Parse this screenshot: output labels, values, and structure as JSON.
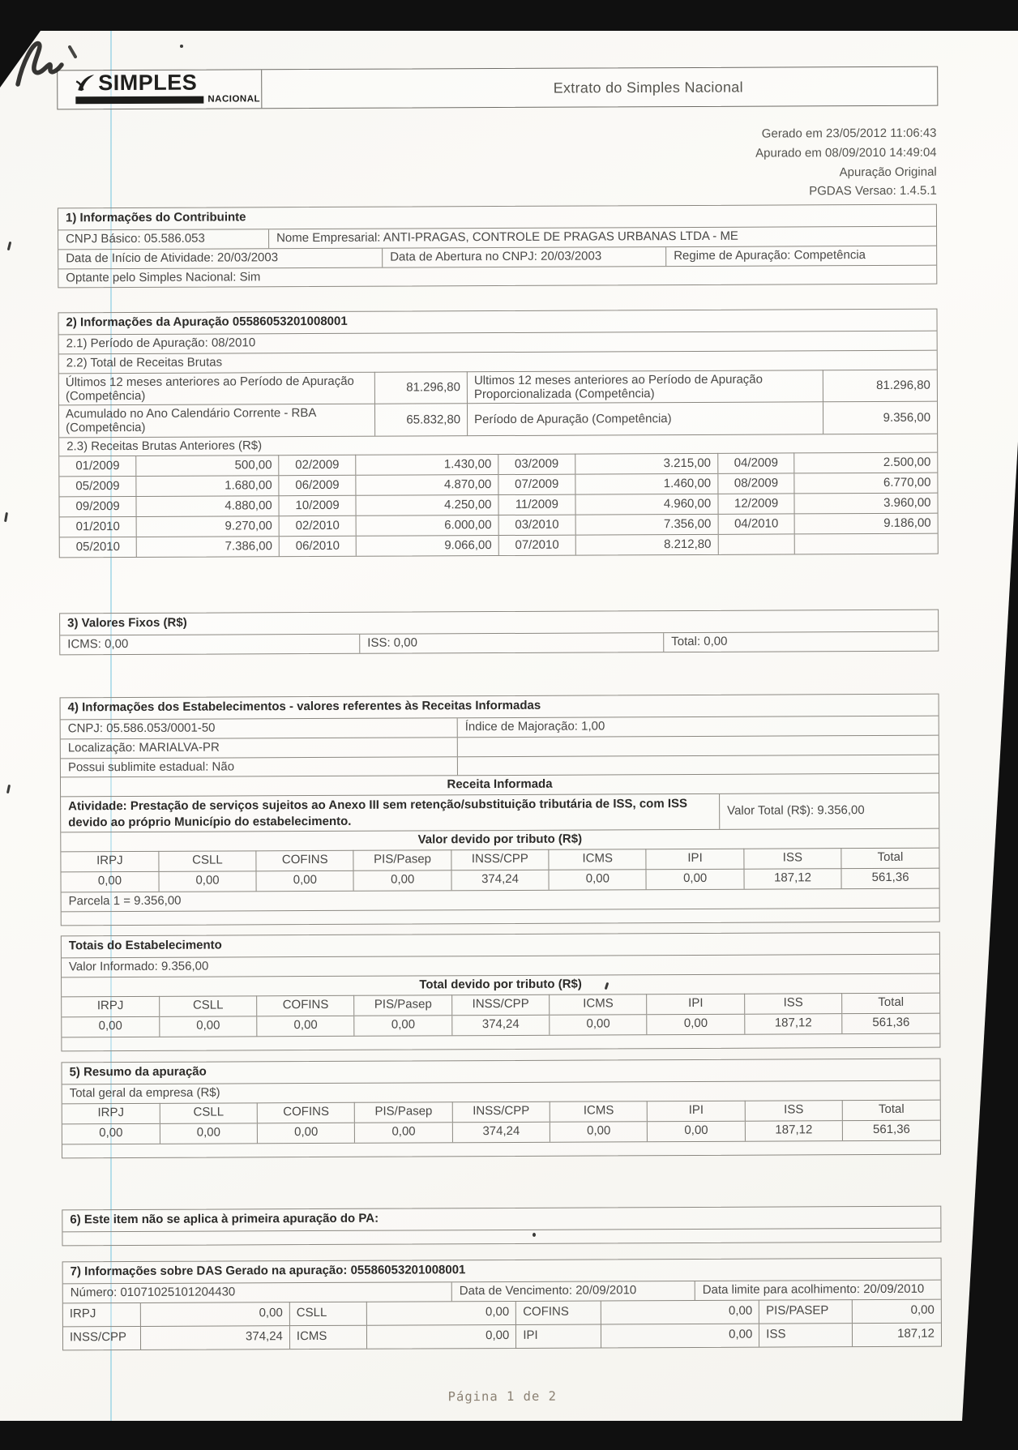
{
  "colors": {
    "paper": "#fbfaf7",
    "ink": "#4a4947"
  },
  "header": {
    "logo_top": "SIMPLES",
    "logo_bottom": "NACIONAL",
    "title": "Extrato do Simples Nacional"
  },
  "meta": {
    "generated": "Gerado em 23/05/2012 11:06:43",
    "calculated": "Apurado em 08/09/2010 14:49:04",
    "apuracao_type": "Apuração Original",
    "version": "PGDAS Versao: 1.4.5.1"
  },
  "sec1": {
    "title": "1) Informações do Contribuinte",
    "cnpj": "CNPJ Básico: 05.586.053",
    "nome": "Nome Empresarial: ANTI-PRAGAS, CONTROLE DE PRAGAS URBANAS LTDA - ME",
    "inicio": "Data de Início de Atividade: 20/03/2003",
    "abertura": "Data de Abertura no CNPJ: 20/03/2003",
    "regime": "Regime de Apuração: Competência",
    "optante": "Optante pelo Simples Nacional: Sim"
  },
  "sec2": {
    "title": "2) Informações da Apuração 05586053201008001",
    "periodo": "2.1) Período de Apuração: 08/2010",
    "total_receitas": "2.2) Total de Receitas Brutas",
    "receitas_totais": [
      [
        "Últimos 12 meses anteriores ao Período de Apuração (Competência)",
        "81.296,80",
        "Ultimos 12 meses anteriores ao Período de Apuração Proporcionalizada (Competência)",
        "81.296,80"
      ],
      [
        "Acumulado no Ano Calendário Corrente - RBA (Competência)",
        "65.832,80",
        "Período de Apuração (Competência)",
        "9.356,00"
      ]
    ],
    "anteriores_title": "2.3) Receitas Brutas Anteriores (R$)",
    "anteriores": [
      [
        "01/2009",
        "500,00",
        "02/2009",
        "1.430,00",
        "03/2009",
        "3.215,00",
        "04/2009",
        "2.500,00"
      ],
      [
        "05/2009",
        "1.680,00",
        "06/2009",
        "4.870,00",
        "07/2009",
        "1.460,00",
        "08/2009",
        "6.770,00"
      ],
      [
        "09/2009",
        "4.880,00",
        "10/2009",
        "4.250,00",
        "11/2009",
        "4.960,00",
        "12/2009",
        "3.960,00"
      ],
      [
        "01/2010",
        "9.270,00",
        "02/2010",
        "6.000,00",
        "03/2010",
        "7.356,00",
        "04/2010",
        "9.186,00"
      ],
      [
        "05/2010",
        "7.386,00",
        "06/2010",
        "9.066,00",
        "07/2010",
        "8.212,80",
        "",
        ""
      ]
    ]
  },
  "sec3": {
    "title": "3) Valores Fixos (R$)",
    "icms": "ICMS: 0,00",
    "iss": "ISS: 0,00",
    "total": "Total: 0,00"
  },
  "sec4": {
    "title": "4) Informações dos Estabelecimentos - valores referentes às Receitas Informadas",
    "cnpj": "CNPJ: 05.586.053/0001-50",
    "indice": "Índice de Majoração: 1,00",
    "localizacao": "Localização: MARIALVA-PR",
    "sublimite": "Possui sublimite estadual: Não",
    "receita_header": "Receita Informada",
    "atividade": "Atividade: Prestação de serviços sujeitos ao Anexo III sem retenção/substituição tributária de ISS, com ISS devido ao próprio Município do estabelecimento.",
    "valor_total": "Valor Total (R$): 9.356,00",
    "tributo_header": "Valor devido por tributo (R$)",
    "tributos": [
      [
        "IRPJ",
        "CSLL",
        "COFINS",
        "PIS/Pasep",
        "INSS/CPP",
        "ICMS",
        "IPI",
        "ISS",
        "Total"
      ],
      [
        "0,00",
        "0,00",
        "0,00",
        "0,00",
        "374,24",
        "0,00",
        "0,00",
        "187,12",
        "561,36"
      ]
    ],
    "parcela": "Parcela 1 = 9.356,00"
  },
  "totais": {
    "title": "Totais do Estabelecimento",
    "valor_informado": "Valor Informado: 9.356,00",
    "tributo_header": "Total devido por tributo (R$)",
    "tributos": [
      [
        "IRPJ",
        "CSLL",
        "COFINS",
        "PIS/Pasep",
        "INSS/CPP",
        "ICMS",
        "IPI",
        "ISS",
        "Total"
      ],
      [
        "0,00",
        "0,00",
        "0,00",
        "0,00",
        "374,24",
        "0,00",
        "0,00",
        "187,12",
        "561,36"
      ]
    ]
  },
  "sec5": {
    "title": "5) Resumo da apuração",
    "subtitle": "Total geral da empresa (R$)",
    "tributos": [
      [
        "IRPJ",
        "CSLL",
        "COFINS",
        "PIS/Pasep",
        "INSS/CPP",
        "ICMS",
        "IPI",
        "ISS",
        "Total"
      ],
      [
        "0,00",
        "0,00",
        "0,00",
        "0,00",
        "374,24",
        "0,00",
        "0,00",
        "187,12",
        "561,36"
      ]
    ]
  },
  "sec6": {
    "title": "6) Este item não se aplica à primeira apuração do PA:"
  },
  "sec7": {
    "title": "7) Informações sobre DAS Gerado na apuração: 05586053201008001",
    "numero": "Número: 01071025101204430",
    "vencimento": "Data de Vencimento: 20/09/2010",
    "limite": "Data limite para acolhimento: 20/09/2010",
    "das": [
      [
        "IRPJ",
        "0,00",
        "CSLL",
        "0,00",
        "COFINS",
        "0,00",
        "PIS/PASEP",
        "0,00"
      ],
      [
        "INSS/CPP",
        "374,24",
        "ICMS",
        "0,00",
        "IPI",
        "0,00",
        "ISS",
        "187,12"
      ]
    ]
  },
  "footer": {
    "page": "Página 1 de 2"
  }
}
